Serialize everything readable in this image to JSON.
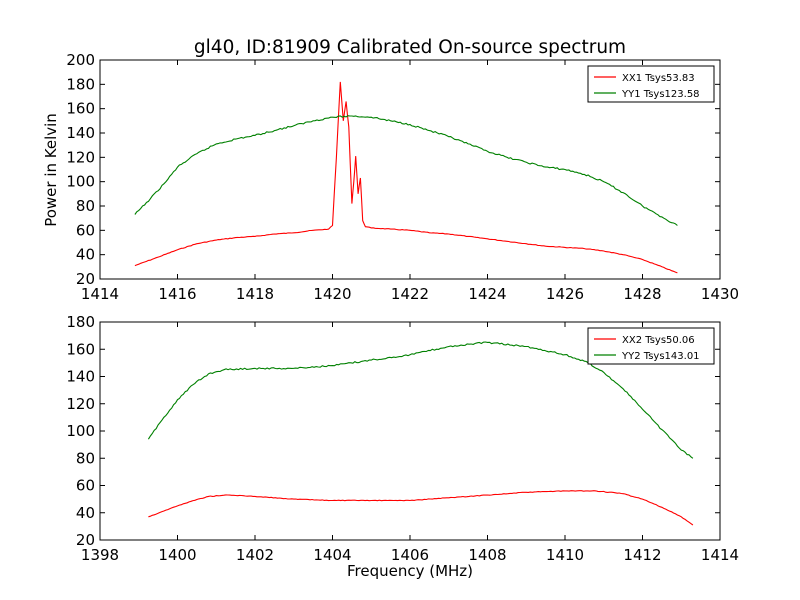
{
  "figure": {
    "title": "gl40, ID:81909 Calibrated On-source spectrum",
    "shared_xlabel": "Frequency (MHz)",
    "shared_ylabel": "Power in Kelvin"
  },
  "colors": {
    "xx": "#ff0000",
    "yy": "#008000"
  },
  "chart_data": [
    {
      "type": "line",
      "title": "gl40, ID:81909 Calibrated On-source spectrum",
      "xlabel": "",
      "ylabel": "Power in Kelvin",
      "xlim": [
        1414,
        1430
      ],
      "ylim": [
        20,
        200
      ],
      "xticks": [
        1414,
        1416,
        1418,
        1420,
        1422,
        1424,
        1426,
        1428,
        1430
      ],
      "yticks": [
        20,
        40,
        60,
        80,
        100,
        120,
        140,
        160,
        180,
        200
      ],
      "grid": false,
      "legend_position": "top-right",
      "series": [
        {
          "name": "XX1 Tsys53.83",
          "color": "#ff0000",
          "x": [
            1414.9,
            1415.5,
            1416.0,
            1416.5,
            1417.0,
            1417.5,
            1418.0,
            1418.5,
            1419.0,
            1419.5,
            1419.9,
            1420.0,
            1420.1,
            1420.2,
            1420.28,
            1420.35,
            1420.42,
            1420.5,
            1420.55,
            1420.6,
            1420.66,
            1420.72,
            1420.78,
            1420.85,
            1421.0,
            1421.5,
            1422.0,
            1422.5,
            1423.0,
            1423.5,
            1424.0,
            1424.5,
            1425.0,
            1425.5,
            1426.0,
            1426.5,
            1427.0,
            1427.5,
            1428.0,
            1428.5,
            1428.9
          ],
          "values": [
            31,
            38,
            44,
            49,
            52,
            54,
            55,
            57,
            58,
            60,
            61,
            64,
            120,
            182,
            150,
            166,
            145,
            82,
            100,
            121,
            90,
            103,
            68,
            63,
            62,
            61,
            60,
            58,
            57,
            55,
            53,
            51,
            49,
            47,
            46,
            45,
            43,
            40,
            36,
            30,
            25
          ]
        },
        {
          "name": "YY1 Tsys123.58",
          "color": "#008000",
          "x": [
            1414.9,
            1415.3,
            1415.7,
            1416.0,
            1416.5,
            1417.0,
            1417.5,
            1418.0,
            1418.5,
            1419.0,
            1419.5,
            1420.0,
            1420.5,
            1421.0,
            1421.5,
            1422.0,
            1422.5,
            1423.0,
            1423.5,
            1424.0,
            1424.5,
            1425.0,
            1425.5,
            1426.0,
            1426.5,
            1427.0,
            1427.5,
            1428.0,
            1428.5,
            1428.9
          ],
          "values": [
            73,
            86,
            100,
            112,
            123,
            131,
            135,
            138,
            142,
            146,
            150,
            153,
            154,
            153,
            150,
            147,
            142,
            137,
            131,
            125,
            120,
            116,
            112,
            110,
            106,
            100,
            91,
            80,
            71,
            64
          ]
        }
      ]
    },
    {
      "type": "line",
      "title": "",
      "xlabel": "Frequency (MHz)",
      "ylabel": "",
      "xlim": [
        1398,
        1414
      ],
      "ylim": [
        20,
        180
      ],
      "xticks": [
        1398,
        1400,
        1402,
        1404,
        1406,
        1408,
        1410,
        1412,
        1414
      ],
      "yticks": [
        20,
        40,
        60,
        80,
        100,
        120,
        140,
        160,
        180
      ],
      "grid": false,
      "legend_position": "top-right",
      "series": [
        {
          "name": "XX2 Tsys50.06",
          "color": "#ff0000",
          "x": [
            1399.25,
            1399.8,
            1400.3,
            1400.8,
            1401.3,
            1402.0,
            1403.0,
            1404.0,
            1405.0,
            1406.0,
            1407.0,
            1408.0,
            1409.0,
            1410.0,
            1410.8,
            1411.5,
            1412.0,
            1412.5,
            1413.0,
            1413.3
          ],
          "values": [
            37,
            43,
            48,
            52,
            53,
            52,
            50,
            49,
            49,
            49,
            51,
            53,
            55,
            56,
            56,
            54,
            50,
            44,
            37,
            31
          ]
        },
        {
          "name": "YY2 Tsys143.01",
          "color": "#008000",
          "x": [
            1399.25,
            1399.6,
            1400.0,
            1400.4,
            1400.8,
            1401.2,
            1402.0,
            1403.0,
            1404.0,
            1405.0,
            1406.0,
            1407.0,
            1408.0,
            1409.0,
            1410.0,
            1410.6,
            1411.0,
            1411.5,
            1412.0,
            1412.5,
            1413.0,
            1413.3
          ],
          "values": [
            94,
            108,
            123,
            134,
            142,
            145,
            146,
            146,
            148,
            152,
            156,
            162,
            165,
            162,
            156,
            150,
            143,
            131,
            116,
            101,
            86,
            80
          ]
        }
      ]
    }
  ]
}
